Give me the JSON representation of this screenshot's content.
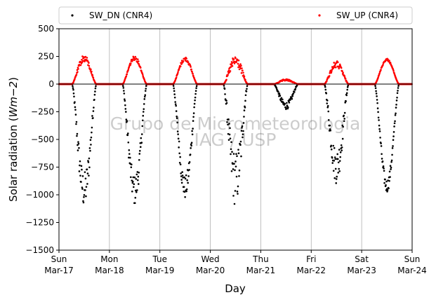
{
  "chart_data": {
    "type": "scatter",
    "xlabel": "Day",
    "ylabel_prefix": "Solar radiation (",
    "ylabel_unit": "Wm−2",
    "ylabel_suffix": ")",
    "ylim": [
      -1500,
      500
    ],
    "yticks": [
      500,
      250,
      0,
      -250,
      -500,
      -750,
      -1000,
      -1250,
      -1500
    ],
    "ytick_labels": [
      "500",
      "250",
      "0",
      "−250",
      "−500",
      "−750",
      "−1000",
      "−1250",
      "−1500"
    ],
    "x_days": [
      "Sun",
      "Mon",
      "Tue",
      "Wed",
      "Thu",
      "Fri",
      "Sat",
      "Sun"
    ],
    "x_dates": [
      "Mar-17",
      "Mar-18",
      "Mar-19",
      "Mar-20",
      "Mar-21",
      "Mar-22",
      "Mar-23",
      "Mar-24"
    ],
    "grid_x": true,
    "zero_line": true,
    "legend_placement": "top",
    "watermark_line1": "Grupo de Micrometeorologia",
    "watermark_line2": "IAG / USP",
    "series": [
      {
        "name": "SW_DN (CNR4)",
        "color": "#000000",
        "daily_peak": [
          -1130,
          -1100,
          -1040,
          -1110,
          -230,
          -900,
          -980
        ],
        "daily_noise": [
          0.3,
          0.25,
          0.2,
          0.45,
          0.3,
          0.35,
          0.12
        ]
      },
      {
        "name": "SW_UP (CNR4)",
        "color": "#ff0000",
        "daily_peak": [
          265,
          255,
          245,
          260,
          45,
          210,
          230
        ],
        "daily_noise": [
          0.25,
          0.15,
          0.15,
          0.4,
          0.35,
          0.3,
          0.08
        ]
      }
    ]
  }
}
